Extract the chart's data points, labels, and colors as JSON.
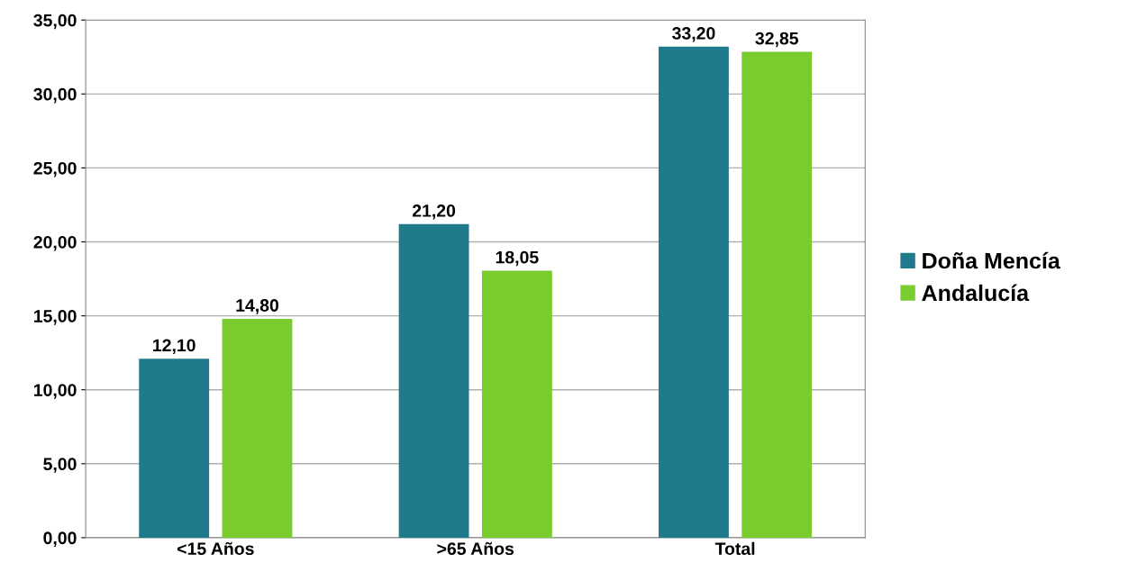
{
  "chart_data": {
    "type": "bar",
    "categories": [
      "<15 Años",
      ">65 Años",
      "Total"
    ],
    "series": [
      {
        "name": "Doña Mencía",
        "color": "#1f7a8c",
        "values": [
          12.1,
          21.2,
          33.2
        ],
        "value_labels": [
          "12,10",
          "21,20",
          "33,20"
        ]
      },
      {
        "name": "Andalucía",
        "color": "#7acc2e",
        "values": [
          14.8,
          18.05,
          32.85
        ],
        "value_labels": [
          "14,80",
          "18,05",
          "32,85"
        ]
      }
    ],
    "ylim": [
      0,
      35
    ],
    "yticks": [
      {
        "value": 0,
        "label": "0,00"
      },
      {
        "value": 5,
        "label": "5,00"
      },
      {
        "value": 10,
        "label": "10,00"
      },
      {
        "value": 15,
        "label": "15,00"
      },
      {
        "value": 20,
        "label": "20,00"
      },
      {
        "value": 25,
        "label": "25,00"
      },
      {
        "value": 30,
        "label": "30,00"
      },
      {
        "value": 35,
        "label": "35,00"
      }
    ],
    "grid": "y",
    "legend": "right"
  }
}
